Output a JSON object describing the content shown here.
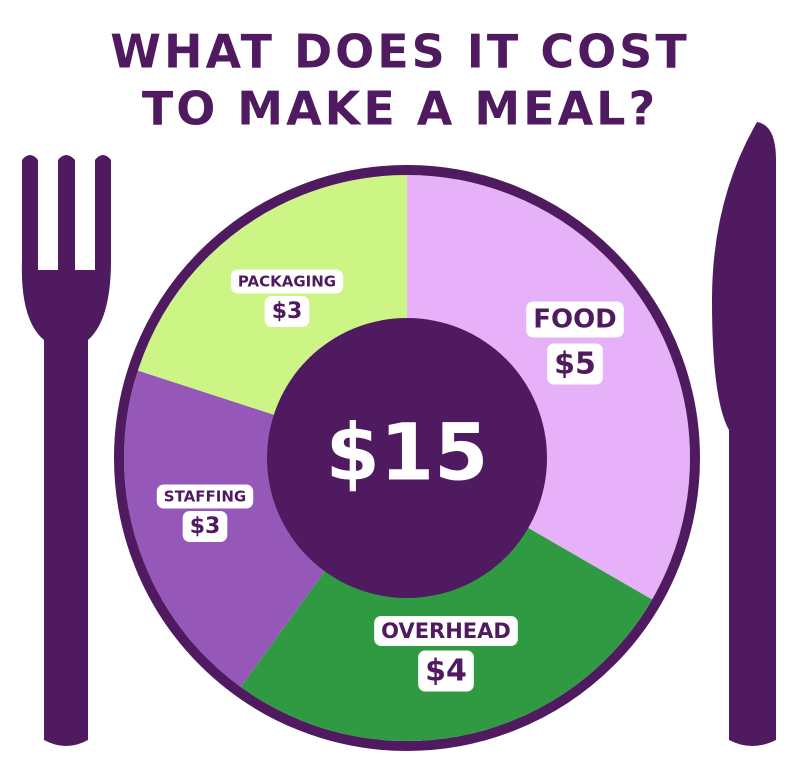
{
  "chart_data": {
    "type": "pie",
    "title_lines": [
      "WHAT DOES IT COST",
      "TO MAKE A MEAL?"
    ],
    "center_label": "$15",
    "categories": [
      "FOOD",
      "OVERHEAD",
      "STAFFING",
      "PACKAGING"
    ],
    "values": [
      5,
      4,
      3,
      3
    ],
    "value_labels": [
      "$5",
      "$4",
      "$3",
      "$3"
    ],
    "colors": [
      "#e6b1f8",
      "#2f9a41",
      "#9558b9",
      "#ccf585"
    ]
  }
}
